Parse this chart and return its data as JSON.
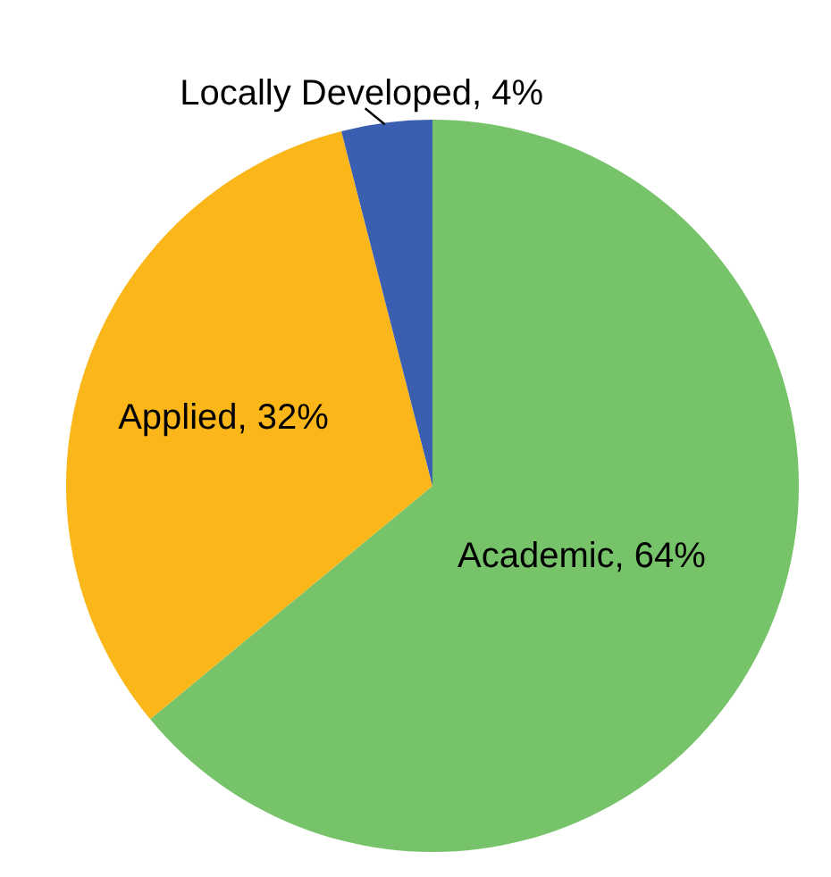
{
  "chart_data": {
    "type": "pie",
    "categories": [
      "Academic",
      "Applied",
      "Locally Developed"
    ],
    "values": [
      64,
      32,
      4
    ],
    "value_labels": [
      "64%",
      "32%",
      "4%"
    ],
    "colors": [
      "#77c36a",
      "#fbb61a",
      "#3a5fb0"
    ]
  }
}
